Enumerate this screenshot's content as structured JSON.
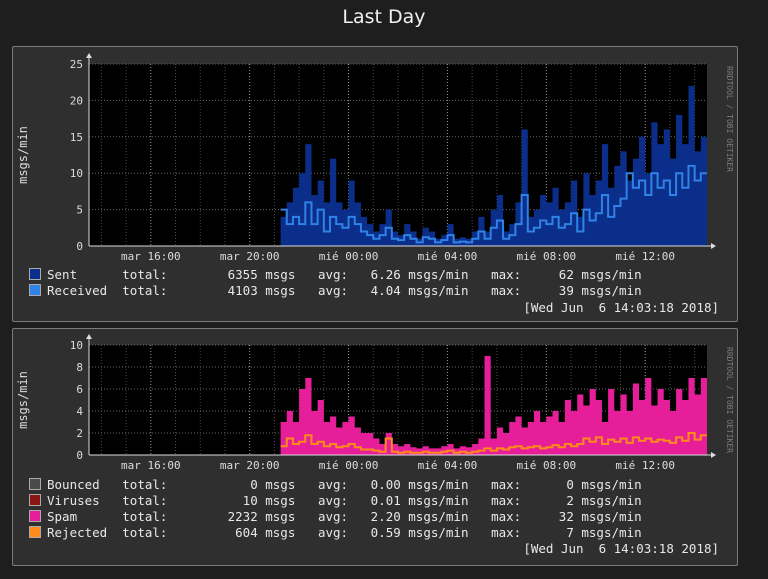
{
  "page_title": "Last Day",
  "chart_data": [
    {
      "type": "area",
      "ylabel": "msgs/min",
      "watermark": "RRDTOOL / TOBI OETIKER",
      "ylim": [
        0,
        25
      ],
      "yticks": [
        0,
        5,
        10,
        15,
        20,
        25
      ],
      "xticks": [
        "mar 16:00",
        "mar 20:00",
        "mié 00:00",
        "mié 04:00",
        "mié 08:00",
        "mié 12:00"
      ],
      "xrange_hours": [
        13.5,
        38.5
      ],
      "series": [
        {
          "name": "Sent",
          "color": "#0b2e8a",
          "style": "area",
          "x": [
            21.25,
            21.5,
            21.75,
            22,
            22.25,
            22.5,
            22.75,
            23,
            23.25,
            23.5,
            23.75,
            24,
            24.25,
            24.5,
            24.75,
            25,
            25.25,
            25.5,
            25.75,
            26,
            26.25,
            26.5,
            26.75,
            27,
            27.25,
            27.5,
            27.75,
            28,
            28.25,
            28.5,
            28.75,
            29,
            29.25,
            29.5,
            29.75,
            30,
            30.25,
            30.5,
            30.75,
            31,
            31.25,
            31.5,
            31.75,
            32,
            32.25,
            32.5,
            32.75,
            33,
            33.25,
            33.5,
            33.75,
            34,
            34.25,
            34.5,
            34.75,
            35,
            35.25,
            35.5,
            35.75,
            36,
            36.25,
            36.5,
            36.75,
            37,
            37.25,
            37.5,
            37.75,
            38,
            38.25
          ],
          "y": [
            4,
            6,
            8,
            10,
            14,
            7,
            9,
            6,
            12,
            6,
            5,
            9,
            6,
            4,
            3,
            2,
            3,
            5,
            2,
            1.5,
            3,
            2,
            1,
            2.5,
            2,
            1,
            1.5,
            3,
            1,
            1.2,
            1,
            2,
            4,
            2,
            5,
            7,
            2,
            3,
            6,
            16,
            4,
            5,
            7,
            6,
            8,
            5,
            6,
            9,
            4,
            10,
            7,
            9,
            14,
            8,
            11,
            13,
            9,
            12,
            15,
            10,
            17,
            14,
            16,
            12,
            18,
            14,
            22,
            13,
            15
          ]
        },
        {
          "name": "Received",
          "color": "#2f82e6",
          "style": "line",
          "x": [
            21.25,
            21.5,
            21.75,
            22,
            22.25,
            22.5,
            22.75,
            23,
            23.25,
            23.5,
            23.75,
            24,
            24.25,
            24.5,
            24.75,
            25,
            25.25,
            25.5,
            25.75,
            26,
            26.25,
            26.5,
            26.75,
            27,
            27.25,
            27.5,
            27.75,
            28,
            28.25,
            28.5,
            28.75,
            29,
            29.25,
            29.5,
            29.75,
            30,
            30.25,
            30.5,
            30.75,
            31,
            31.25,
            31.5,
            31.75,
            32,
            32.25,
            32.5,
            32.75,
            33,
            33.25,
            33.5,
            33.75,
            34,
            34.25,
            34.5,
            34.75,
            35,
            35.25,
            35.5,
            35.75,
            36,
            36.25,
            36.5,
            36.75,
            37,
            37.25,
            37.5,
            37.75,
            38,
            38.25
          ],
          "y": [
            5,
            3,
            4,
            3,
            6,
            3,
            5,
            2,
            4,
            3,
            2.5,
            4,
            3,
            2,
            1.5,
            1,
            1.5,
            2.5,
            1,
            0.8,
            1.5,
            1,
            0.5,
            1.2,
            1,
            0.5,
            0.8,
            1.5,
            0.5,
            0.6,
            0.5,
            1,
            2,
            1,
            2.5,
            3.5,
            1,
            1.5,
            3,
            7,
            2,
            2.5,
            3.5,
            3,
            4,
            2.5,
            3,
            4.5,
            2,
            5,
            3.5,
            4.5,
            7,
            4,
            5.5,
            6.5,
            10,
            8,
            9,
            7,
            10,
            8,
            9,
            7,
            10,
            8,
            11,
            9,
            10
          ]
        }
      ],
      "legend": [
        {
          "name": "Sent",
          "color": "#0b2e8a",
          "total": "6355",
          "avg": "6.26",
          "max": "62"
        },
        {
          "name": "Received",
          "color": "#2f82e6",
          "total": "4103",
          "avg": "4.04",
          "max": "39"
        }
      ],
      "timestamp": "[Wed Jun  6 14:03:18 2018]"
    },
    {
      "type": "area",
      "ylabel": "msgs/min",
      "watermark": "RRDTOOL / TOBI OETIKER",
      "ylim": [
        0,
        10
      ],
      "yticks": [
        0,
        2,
        4,
        6,
        8,
        10
      ],
      "xticks": [
        "mar 16:00",
        "mar 20:00",
        "mié 00:00",
        "mié 04:00",
        "mié 08:00",
        "mié 12:00"
      ],
      "xrange_hours": [
        13.5,
        38.5
      ],
      "series": [
        {
          "name": "Spam",
          "color": "#e61e9a",
          "style": "area",
          "x": [
            21.25,
            21.5,
            21.75,
            22,
            22.25,
            22.5,
            22.75,
            23,
            23.25,
            23.5,
            23.75,
            24,
            24.25,
            24.5,
            24.75,
            25,
            25.25,
            25.5,
            25.75,
            26,
            26.25,
            26.5,
            26.75,
            27,
            27.25,
            27.5,
            27.75,
            28,
            28.25,
            28.5,
            28.75,
            29,
            29.25,
            29.5,
            29.75,
            30,
            30.25,
            30.5,
            30.75,
            31,
            31.25,
            31.5,
            31.75,
            32,
            32.25,
            32.5,
            32.75,
            33,
            33.25,
            33.5,
            33.75,
            34,
            34.25,
            34.5,
            34.75,
            35,
            35.25,
            35.5,
            35.75,
            36,
            36.25,
            36.5,
            36.75,
            37,
            37.25,
            37.5,
            37.75,
            38,
            38.25
          ],
          "y": [
            3,
            4,
            3,
            6,
            7,
            4,
            5,
            3,
            3.5,
            2.5,
            3,
            3.5,
            2.5,
            2,
            2,
            1.5,
            1,
            2,
            1,
            0.8,
            1,
            0.7,
            0.6,
            0.8,
            0.6,
            0.6,
            0.8,
            1,
            0.6,
            0.8,
            0.7,
            1,
            1.5,
            9,
            1.5,
            2.5,
            2,
            3,
            3.5,
            2.5,
            3,
            4,
            3,
            3.5,
            4,
            3,
            5,
            4,
            5.5,
            4.5,
            6,
            5,
            3,
            6,
            4,
            5.5,
            4,
            6.5,
            5,
            7,
            4.5,
            6,
            5,
            4,
            6,
            5,
            7,
            5.5,
            7
          ]
        },
        {
          "name": "Rejected",
          "color": "#ff8c1a",
          "style": "line",
          "x": [
            21.25,
            21.5,
            21.75,
            22,
            22.25,
            22.5,
            22.75,
            23,
            23.25,
            23.5,
            23.75,
            24,
            24.25,
            24.5,
            24.75,
            25,
            25.25,
            25.5,
            25.75,
            26,
            26.25,
            26.5,
            26.75,
            27,
            27.25,
            27.5,
            27.75,
            28,
            28.25,
            28.5,
            28.75,
            29,
            29.25,
            29.5,
            29.75,
            30,
            30.25,
            30.5,
            30.75,
            31,
            31.25,
            31.5,
            31.75,
            32,
            32.25,
            32.5,
            32.75,
            33,
            33.25,
            33.5,
            33.75,
            34,
            34.25,
            34.5,
            34.75,
            35,
            35.25,
            35.5,
            35.75,
            36,
            36.25,
            36.5,
            36.75,
            37,
            37.25,
            37.5,
            37.75,
            38,
            38.25
          ],
          "y": [
            0.8,
            1.5,
            1,
            1.2,
            1.8,
            1,
            1.2,
            0.8,
            1,
            0.7,
            0.8,
            1,
            0.7,
            0.5,
            0.5,
            0.4,
            0.3,
            1.5,
            0.3,
            0.2,
            0.3,
            0.2,
            0.2,
            0.3,
            0.2,
            0.2,
            0.3,
            0.4,
            0.2,
            0.3,
            0.2,
            0.3,
            0.4,
            0.6,
            0.4,
            0.6,
            0.5,
            0.7,
            0.8,
            0.6,
            0.7,
            0.8,
            0.6,
            0.7,
            0.9,
            0.7,
            1,
            0.8,
            1,
            1.5,
            1.2,
            1.6,
            1,
            1.4,
            1.2,
            1.5,
            1.1,
            1.6,
            1.3,
            1.5,
            1.2,
            1.4,
            1.3,
            1.1,
            1.6,
            1.3,
            2,
            1.4,
            1.8
          ]
        }
      ],
      "legend": [
        {
          "name": "Bounced",
          "color": "#4a4a4a",
          "total": "0",
          "avg": "0.00",
          "max": "0"
        },
        {
          "name": "Viruses",
          "color": "#8b1414",
          "total": "10",
          "avg": "0.01",
          "max": "2"
        },
        {
          "name": "Spam",
          "color": "#e61e9a",
          "total": "2232",
          "avg": "2.20",
          "max": "32"
        },
        {
          "name": "Rejected",
          "color": "#ff8c1a",
          "total": "604",
          "avg": "0.59",
          "max": "7"
        }
      ],
      "timestamp": "[Wed Jun  6 14:03:18 2018]"
    }
  ],
  "labels": {
    "total": "total:",
    "avg": "avg:",
    "max": "max:",
    "unit_msgs": "msgs",
    "unit_rate": "msgs/min"
  }
}
